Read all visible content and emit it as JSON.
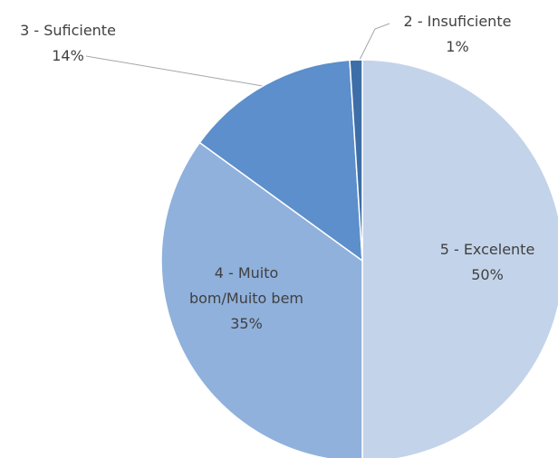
{
  "chart_data": {
    "type": "pie",
    "categories": [
      "5 - Excelente",
      "4 - Muito bom/Muito bem",
      "3 - Suficiente",
      "2 - Insuficiente"
    ],
    "values": [
      50,
      35,
      14,
      1
    ],
    "value_labels": [
      "50%",
      "35%",
      "14%",
      "1%"
    ],
    "colors": [
      "#c3d3ea",
      "#90b1dc",
      "#5c8fcb",
      "#3e6ea8"
    ]
  }
}
